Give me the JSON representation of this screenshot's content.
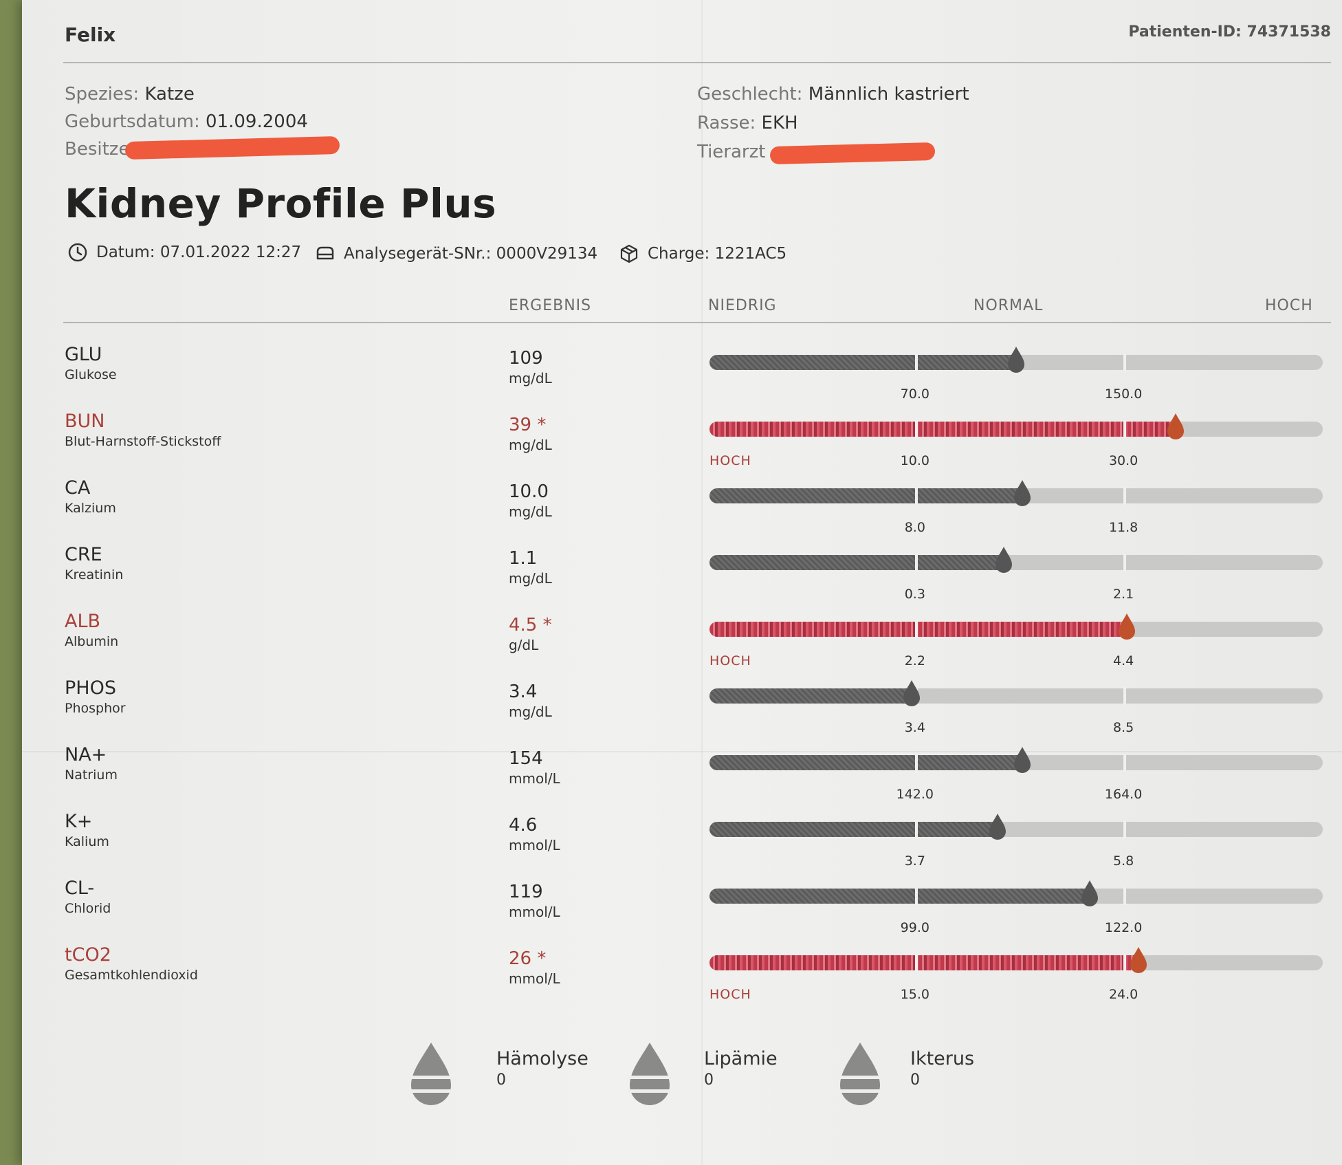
{
  "patient": {
    "name": "Felix",
    "id_label": "Patienten-ID:",
    "id_value": "74371538"
  },
  "info": {
    "species_label": "Spezies:",
    "species": "Katze",
    "birth_label": "Geburtsdatum:",
    "birth": "01.09.2004",
    "owner_label": "Besitzer",
    "sex_label": "Geschlecht:",
    "sex": "Männlich kastriert",
    "breed_label": "Rasse:",
    "breed": "EKH",
    "vet_label": "Tierarzt"
  },
  "report": {
    "title": "Kidney Profile Plus",
    "date": "Datum: 07.01.2022 12:27",
    "device": "Analysegerät-SNr.: 0000V29134",
    "batch": "Charge: 1221AC5"
  },
  "columns": {
    "result": "ERGEBNIS",
    "low": "NIEDRIG",
    "normal": "NORMAL",
    "high": "HOCH"
  },
  "results": [
    {
      "code": "GLU",
      "name": "Glukose",
      "value": "109",
      "unit": "mg/dL",
      "low": "70.0",
      "high": "150.0",
      "flag": "",
      "level": 0.5
    },
    {
      "code": "BUN",
      "name": "Blut-Harnstoff-Stickstoff",
      "value": "39 *",
      "unit": "mg/dL",
      "low": "10.0",
      "high": "30.0",
      "flag": "HOCH",
      "level": 0.76
    },
    {
      "code": "CA",
      "name": "Kalzium",
      "value": "10.0",
      "unit": "mg/dL",
      "low": "8.0",
      "high": "11.8",
      "flag": "",
      "level": 0.51
    },
    {
      "code": "CRE",
      "name": "Kreatinin",
      "value": "1.1",
      "unit": "mg/dL",
      "low": "0.3",
      "high": "2.1",
      "flag": "",
      "level": 0.48
    },
    {
      "code": "ALB",
      "name": "Albumin",
      "value": "4.5 *",
      "unit": "g/dL",
      "low": "2.2",
      "high": "4.4",
      "flag": "HOCH",
      "level": 0.68
    },
    {
      "code": "PHOS",
      "name": "Phosphor",
      "value": "3.4",
      "unit": "mg/dL",
      "low": "3.4",
      "high": "8.5",
      "flag": "",
      "level": 0.33
    },
    {
      "code": "NA+",
      "name": "Natrium",
      "value": "154",
      "unit": "mmol/L",
      "low": "142.0",
      "high": "164.0",
      "flag": "",
      "level": 0.51
    },
    {
      "code": "K+",
      "name": "Kalium",
      "value": "4.6",
      "unit": "mmol/L",
      "low": "3.7",
      "high": "5.8",
      "flag": "",
      "level": 0.47
    },
    {
      "code": "CL-",
      "name": "Chlorid",
      "value": "119",
      "unit": "mmol/L",
      "low": "99.0",
      "high": "122.0",
      "flag": "",
      "level": 0.62
    },
    {
      "code": "tCO2",
      "name": "Gesamtkohlendioxid",
      "value": "26 *",
      "unit": "mmol/L",
      "low": "15.0",
      "high": "24.0",
      "flag": "HOCH",
      "level": 0.7
    }
  ],
  "indices": [
    {
      "label": "Hämolyse",
      "value": "0"
    },
    {
      "label": "Lipämie",
      "value": "0"
    },
    {
      "label": "Ikterus",
      "value": "0"
    }
  ],
  "colors": {
    "flag": "#a8413a",
    "redaction": "#ef5a3c",
    "bar_normal": "#5a5a5a",
    "bar_flag": "#c03a4c"
  }
}
